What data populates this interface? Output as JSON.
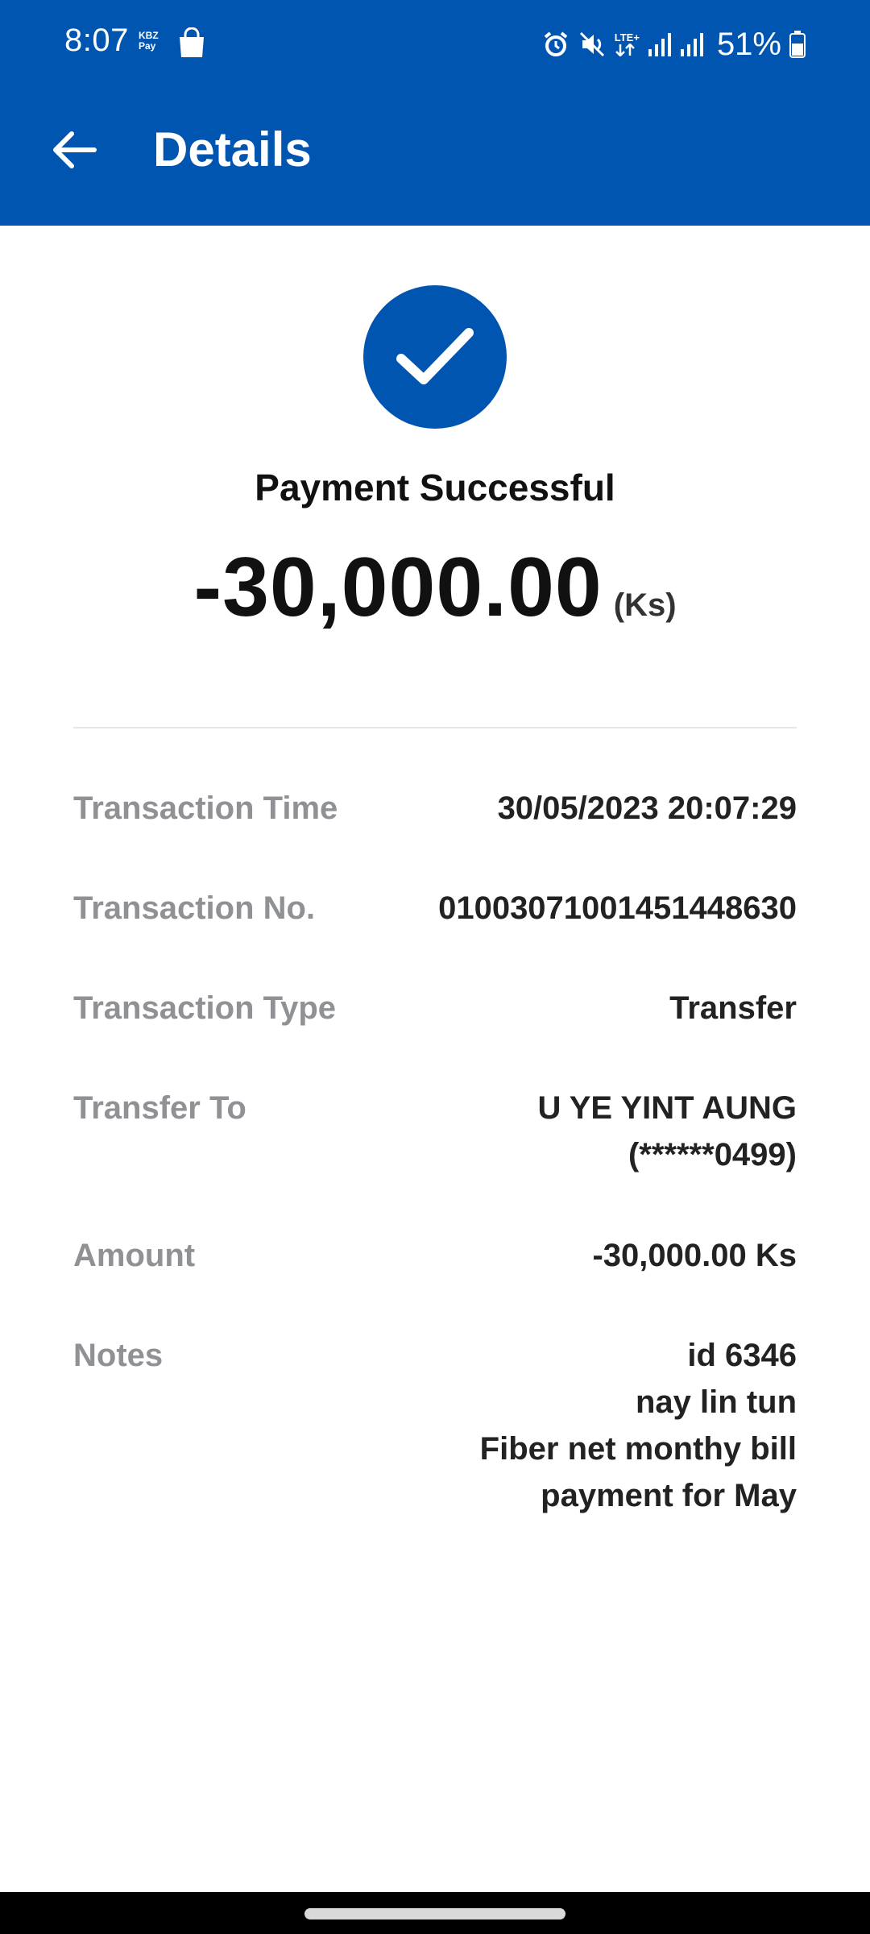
{
  "status_bar": {
    "time": "8:07",
    "kbz_line1": "KBZ",
    "kbz_line2": "Pay",
    "lte": "LTE+",
    "battery": "51%"
  },
  "header": {
    "title": "Details"
  },
  "result": {
    "status": "Payment Successful",
    "amount": "-30,000.00",
    "unit": "(Ks)"
  },
  "details": {
    "transaction_time_label": "Transaction Time",
    "transaction_time_value": "30/05/2023 20:07:29",
    "transaction_no_label": "Transaction No.",
    "transaction_no_value": "01003071001451448630",
    "transaction_type_label": "Transaction Type",
    "transaction_type_value": "Transfer",
    "transfer_to_label": "Transfer To",
    "transfer_to_name": "U YE YINT AUNG",
    "transfer_to_phone": "(******0499)",
    "amount_label": "Amount",
    "amount_value": "-30,000.00 Ks",
    "notes_label": "Notes",
    "notes_lines": [
      "id 6346",
      "nay lin tun",
      "Fiber net monthy bill",
      "payment for May"
    ]
  },
  "colors": {
    "brand": "#0055b0",
    "label": "#8f9195",
    "value": "#222222"
  }
}
